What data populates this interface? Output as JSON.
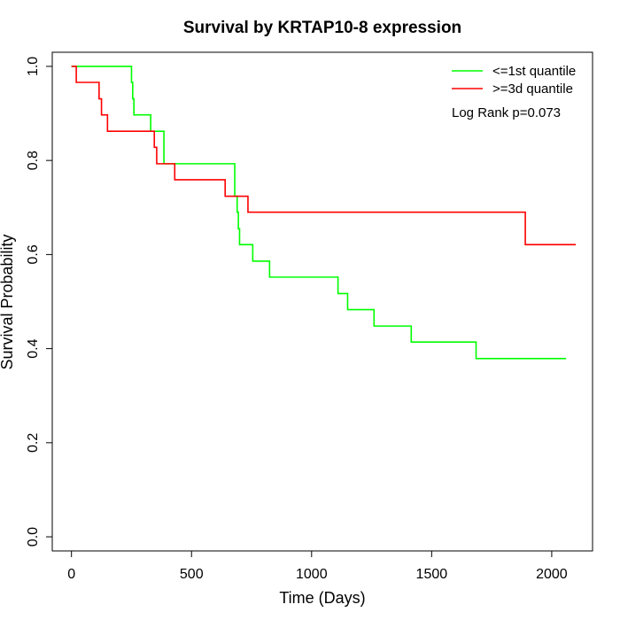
{
  "chart_data": {
    "type": "line",
    "title": "Survival by KRTAP10-8 expression",
    "xlabel": "Time (Days)",
    "ylabel": "Survival Probability",
    "xlim": [
      -80,
      2170
    ],
    "ylim": [
      -0.03,
      1.03
    ],
    "xticks": [
      0,
      500,
      1000,
      1500,
      2000
    ],
    "yticks": [
      0.0,
      0.2,
      0.4,
      0.6,
      0.8,
      1.0
    ],
    "xtick_labels": [
      "0",
      "500",
      "1000",
      "1500",
      "2000"
    ],
    "ytick_labels": [
      "0.0",
      "0.2",
      "0.4",
      "0.6",
      "0.8",
      "1.0"
    ],
    "annotation": "Log Rank p=0.073",
    "legend_position": "top-right",
    "grid": false,
    "series": [
      {
        "name": "<=1st quantile",
        "color": "#00ff00",
        "step": true,
        "x": [
          0,
          200,
          250,
          255,
          260,
          330,
          385,
          640,
          680,
          690,
          695,
          700,
          755,
          825,
          1110,
          1150,
          1260,
          1415,
          1685,
          2060
        ],
        "y": [
          1.0,
          1.0,
          0.966,
          0.931,
          0.897,
          0.862,
          0.793,
          0.793,
          0.724,
          0.69,
          0.655,
          0.621,
          0.586,
          0.552,
          0.517,
          0.483,
          0.448,
          0.414,
          0.379,
          0.379
        ]
      },
      {
        "name": ">=3d quantile",
        "color": "#ff0000",
        "step": true,
        "x": [
          0,
          20,
          115,
          125,
          150,
          345,
          355,
          360,
          430,
          640,
          735,
          1890,
          2100
        ],
        "y": [
          1.0,
          0.966,
          0.931,
          0.897,
          0.862,
          0.828,
          0.793,
          0.793,
          0.759,
          0.724,
          0.69,
          0.621,
          0.621
        ]
      }
    ]
  }
}
